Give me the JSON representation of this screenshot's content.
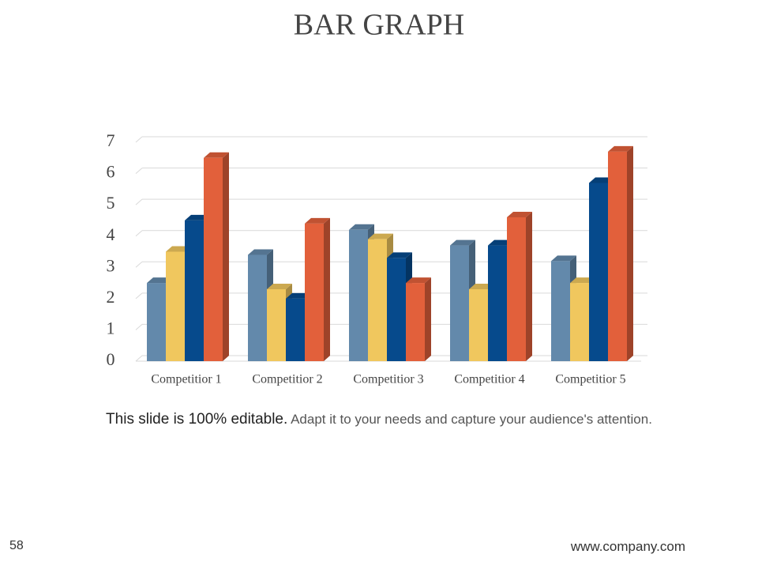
{
  "chart_data": {
    "type": "bar3d",
    "title": "BAR GRAPH",
    "categories": [
      "Competitior 1",
      "Competitior 2",
      "Competitior 3",
      "Competitior 4",
      "Competitior 5"
    ],
    "series": [
      {
        "color": "#6389ab",
        "values": [
          2.5,
          3.4,
          4.2,
          3.7,
          3.2
        ]
      },
      {
        "color": "#f0c75e",
        "values": [
          3.5,
          2.3,
          3.9,
          2.3,
          2.5
        ]
      },
      {
        "color": "#064a8c",
        "values": [
          4.5,
          2.0,
          3.3,
          3.7,
          5.7
        ]
      },
      {
        "color": "#e2603b",
        "values": [
          6.5,
          4.4,
          2.5,
          4.6,
          6.7
        ]
      }
    ],
    "ylim": [
      0,
      7
    ],
    "yticks": [
      0,
      1,
      2,
      3,
      4,
      5,
      6,
      7
    ],
    "grid": true
  },
  "slide": {
    "caption_bold": "This slide is 100% editable.",
    "caption": "Adapt it to your needs and capture your audience's attention.",
    "page_number": "58",
    "website": "www.company.com"
  }
}
